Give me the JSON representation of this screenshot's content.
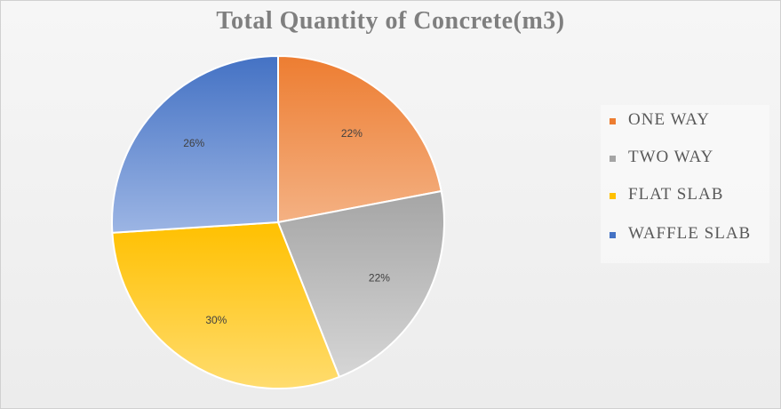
{
  "chart_data": {
    "type": "pie",
    "title": "Total Quantity of Concrete(m3)",
    "slices": [
      {
        "name": "ONE WAY",
        "value": 22,
        "label": "22%",
        "color": "#ed7d31",
        "color_light": "#f4b183"
      },
      {
        "name": "TWO WAY",
        "value": 22,
        "label": "22%",
        "color": "#a5a5a5",
        "color_light": "#d6d6d6"
      },
      {
        "name": "FLAT SLAB",
        "value": 30,
        "label": "30%",
        "color": "#ffc000",
        "color_light": "#ffdc6e"
      },
      {
        "name": "WAFFLE SLAB",
        "value": 26,
        "label": "26%",
        "color": "#4472c4",
        "color_light": "#9cb5e4"
      }
    ],
    "start_angle_deg": 0,
    "direction": "clockwise",
    "legend_position": "right"
  }
}
